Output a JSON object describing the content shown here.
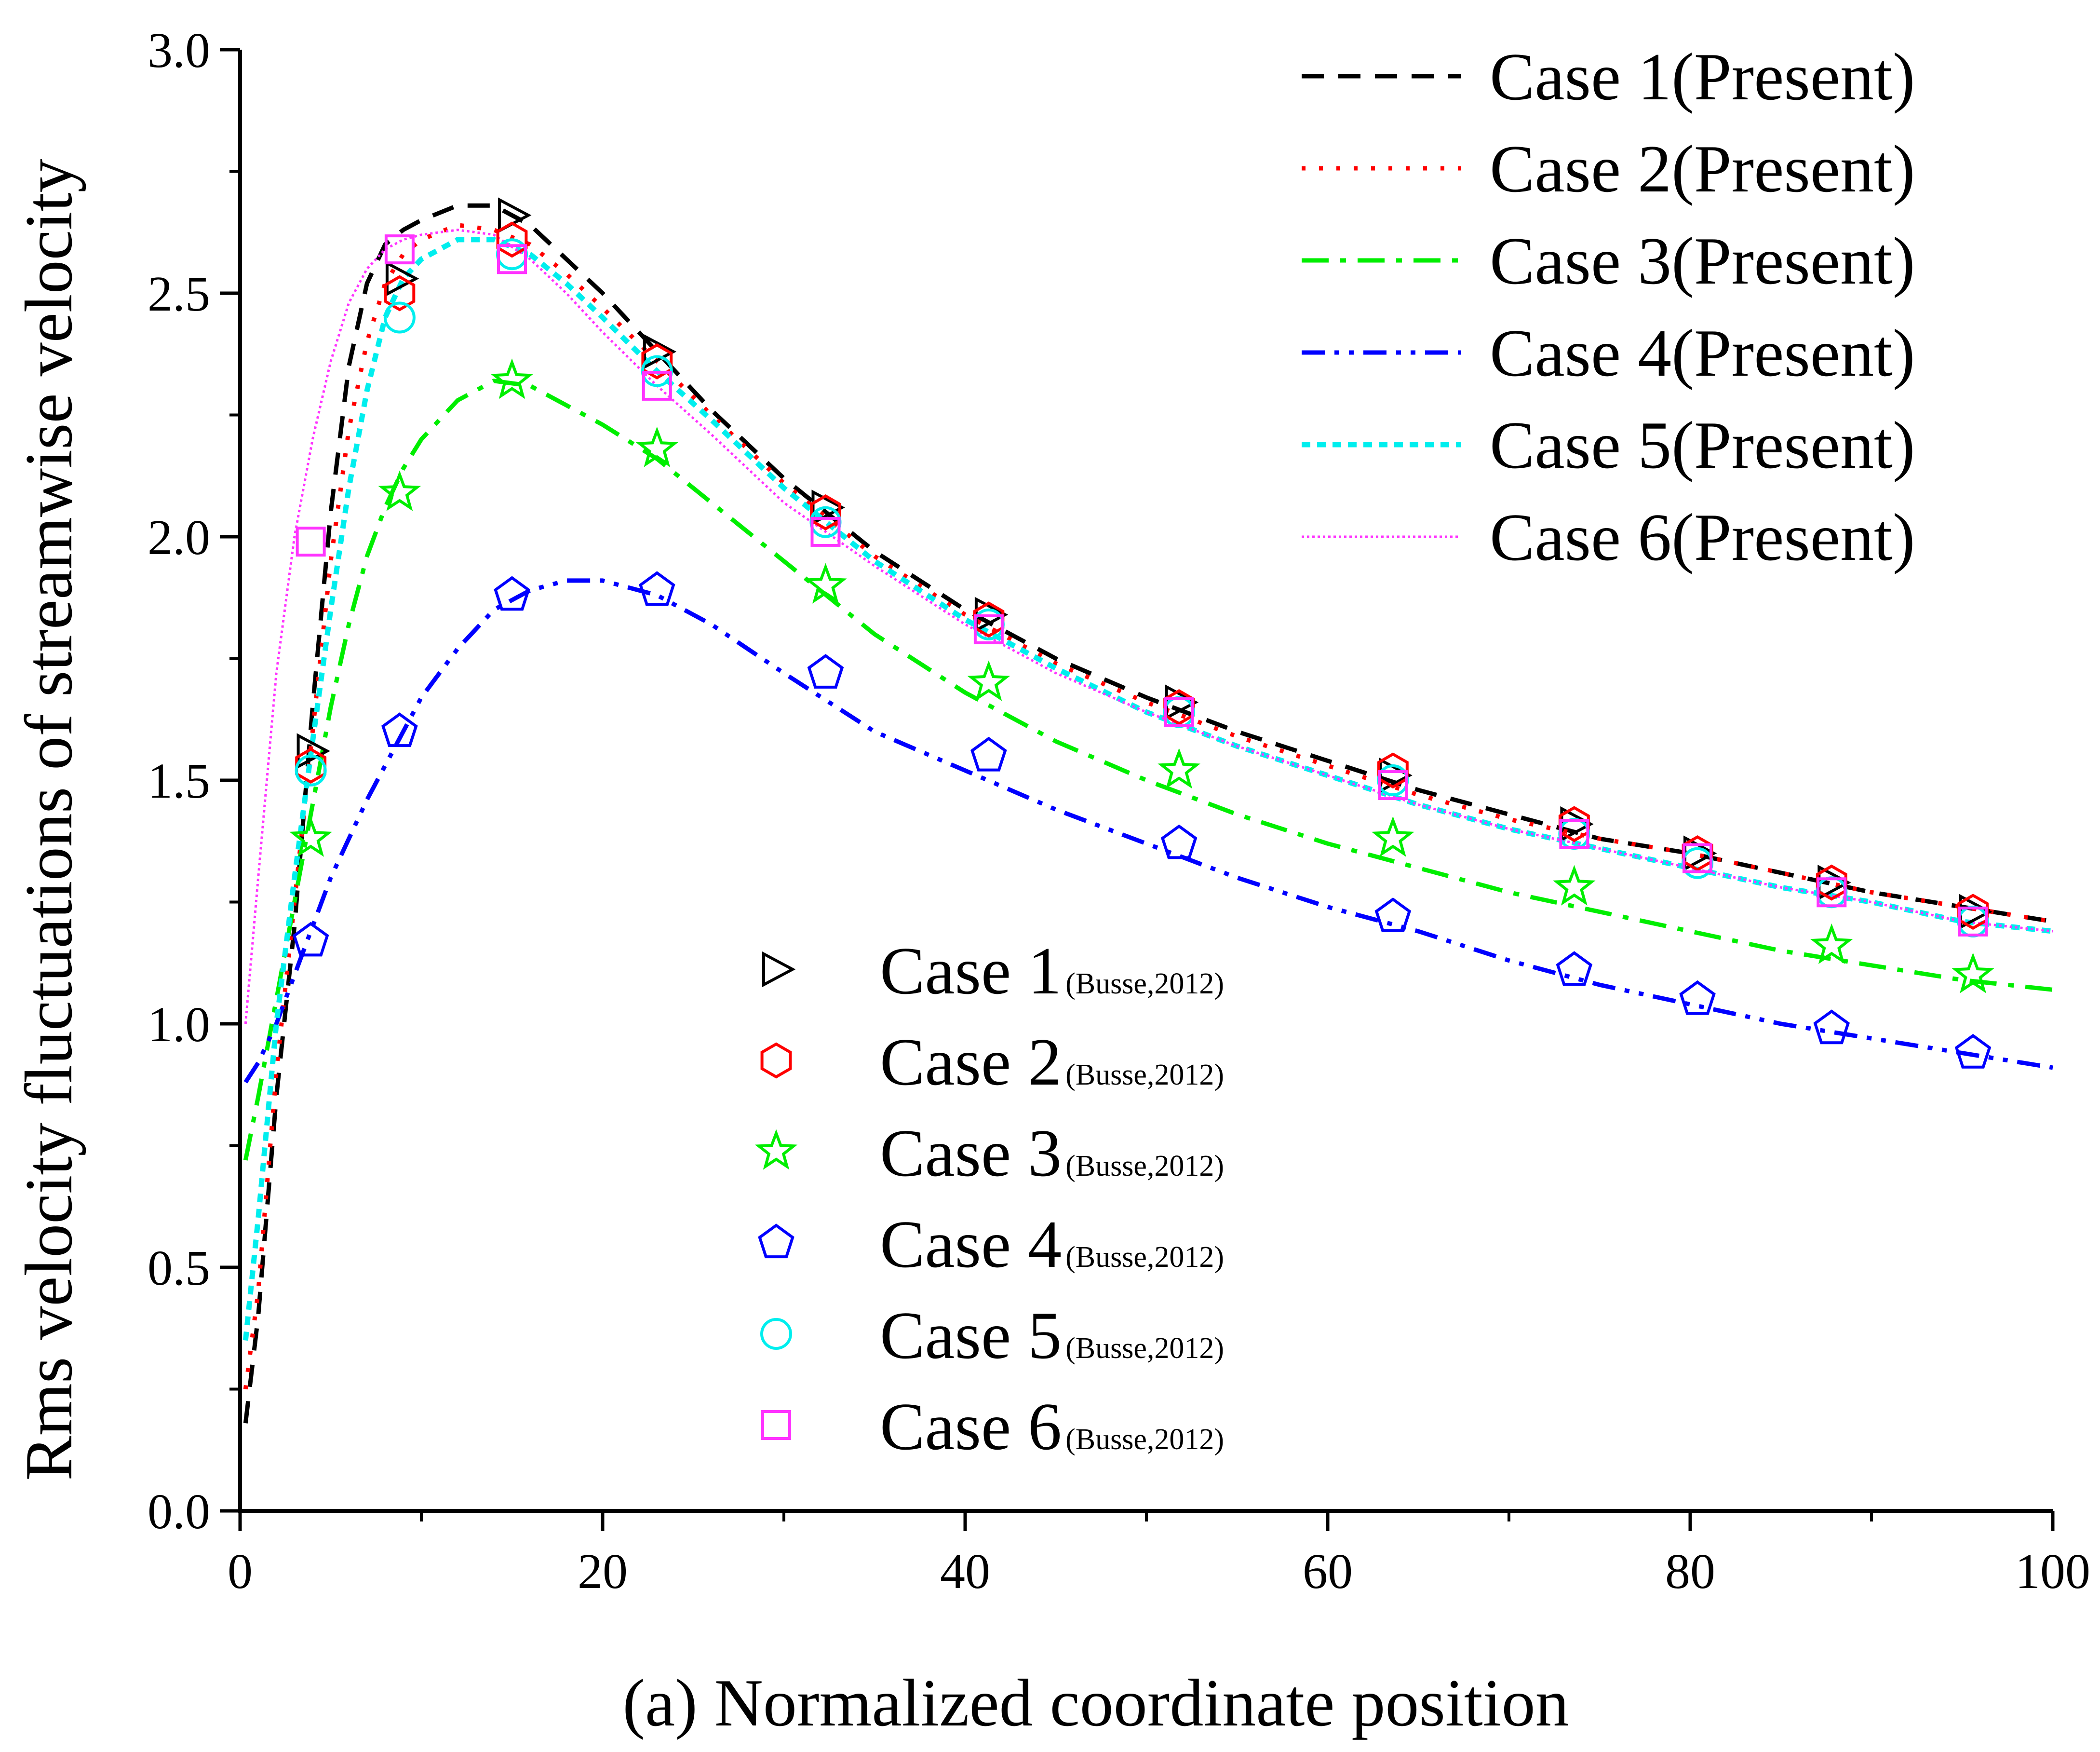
{
  "chart_data": {
    "type": "line",
    "title": "",
    "xlabel": "(a) Normalized coordinate position",
    "ylabel": "Rms velocity fluctuations of streamwise velocity",
    "xlim": [
      0,
      100
    ],
    "ylim": [
      0,
      3.0
    ],
    "xticks": [
      "0",
      "20",
      "40",
      "60",
      "80",
      "100"
    ],
    "yticks": [
      "0.0",
      "0.5",
      "1.0",
      "1.5",
      "2.0",
      "2.5",
      "3.0"
    ],
    "grid": false,
    "legend_lines_position": "top-right",
    "legend_markers_position": "center",
    "series_lines": [
      {
        "name": "Case 1(Present)",
        "color": "#000000",
        "style": "dash",
        "x": [
          0.3,
          1,
          2,
          3,
          4,
          5,
          6,
          7,
          8,
          9,
          10,
          12,
          14,
          16,
          18,
          20,
          23,
          26,
          30,
          35,
          40,
          45,
          50,
          55,
          60,
          65,
          70,
          75,
          80,
          85,
          90,
          95,
          100
        ],
        "y": [
          0.18,
          0.4,
          0.85,
          1.2,
          1.65,
          2.05,
          2.35,
          2.52,
          2.6,
          2.63,
          2.65,
          2.68,
          2.68,
          2.64,
          2.57,
          2.5,
          2.38,
          2.26,
          2.12,
          1.97,
          1.85,
          1.75,
          1.67,
          1.6,
          1.54,
          1.48,
          1.43,
          1.38,
          1.35,
          1.31,
          1.27,
          1.24,
          1.21
        ]
      },
      {
        "name": "Case 2(Present)",
        "color": "#ff0000",
        "style": "dot",
        "x": [
          0.3,
          1,
          2,
          3,
          4,
          5,
          6,
          7,
          8,
          9,
          10,
          12,
          14,
          16,
          18,
          20,
          23,
          26,
          30,
          35,
          40,
          45,
          50,
          55,
          60,
          65,
          70,
          75,
          80,
          85,
          90,
          95,
          100
        ],
        "y": [
          0.25,
          0.45,
          0.9,
          1.25,
          1.6,
          1.95,
          2.22,
          2.4,
          2.52,
          2.58,
          2.61,
          2.64,
          2.63,
          2.6,
          2.54,
          2.47,
          2.36,
          2.25,
          2.11,
          1.96,
          1.84,
          1.74,
          1.66,
          1.59,
          1.53,
          1.47,
          1.42,
          1.38,
          1.35,
          1.31,
          1.27,
          1.24,
          1.21
        ]
      },
      {
        "name": "Case 3(Present)",
        "color": "#00ee00",
        "style": "dashdot",
        "x": [
          0.3,
          1,
          2,
          3,
          4,
          5,
          6,
          7,
          8,
          9,
          10,
          12,
          14,
          16,
          18,
          20,
          23,
          26,
          30,
          35,
          40,
          45,
          50,
          55,
          60,
          65,
          70,
          75,
          80,
          85,
          90,
          95,
          100
        ],
        "y": [
          0.72,
          0.85,
          1.05,
          1.25,
          1.45,
          1.65,
          1.82,
          1.96,
          2.06,
          2.14,
          2.2,
          2.28,
          2.32,
          2.31,
          2.27,
          2.23,
          2.16,
          2.07,
          1.95,
          1.8,
          1.68,
          1.58,
          1.5,
          1.43,
          1.37,
          1.32,
          1.27,
          1.23,
          1.19,
          1.15,
          1.12,
          1.09,
          1.07
        ]
      },
      {
        "name": "Case 4(Present)",
        "color": "#0000ff",
        "style": "dashdotdot",
        "x": [
          0.3,
          1,
          2,
          3,
          4,
          5,
          6,
          7,
          8,
          9,
          10,
          12,
          14,
          16,
          18,
          20,
          23,
          26,
          30,
          35,
          40,
          45,
          50,
          55,
          60,
          65,
          70,
          75,
          80,
          85,
          90,
          95,
          100
        ],
        "y": [
          0.88,
          0.92,
          1.0,
          1.1,
          1.2,
          1.3,
          1.38,
          1.46,
          1.53,
          1.6,
          1.67,
          1.77,
          1.85,
          1.89,
          1.91,
          1.91,
          1.88,
          1.82,
          1.72,
          1.6,
          1.52,
          1.44,
          1.37,
          1.3,
          1.24,
          1.19,
          1.13,
          1.08,
          1.04,
          1.0,
          0.97,
          0.94,
          0.91
        ]
      },
      {
        "name": "Case 5(Present)",
        "color": "#00eeee",
        "style": "shortdot",
        "x": [
          0.3,
          1,
          2,
          3,
          4,
          5,
          6,
          7,
          8,
          9,
          10,
          12,
          14,
          16,
          18,
          20,
          23,
          26,
          30,
          35,
          40,
          45,
          50,
          55,
          60,
          65,
          70,
          75,
          80,
          85,
          90,
          95,
          100
        ],
        "y": [
          0.35,
          0.6,
          1.0,
          1.3,
          1.58,
          1.85,
          2.1,
          2.3,
          2.45,
          2.53,
          2.57,
          2.61,
          2.61,
          2.58,
          2.52,
          2.45,
          2.34,
          2.24,
          2.1,
          1.95,
          1.83,
          1.73,
          1.64,
          1.57,
          1.51,
          1.45,
          1.4,
          1.36,
          1.32,
          1.28,
          1.25,
          1.21,
          1.19
        ]
      },
      {
        "name": "Case 6(Present)",
        "color": "#ff33ff",
        "style": "finedot",
        "x": [
          0.3,
          1,
          2,
          3,
          4,
          5,
          6,
          7,
          8,
          9,
          10,
          12,
          14,
          16,
          18,
          20,
          23,
          26,
          30,
          35,
          40,
          45,
          50,
          55,
          60,
          65,
          70,
          75,
          80,
          85,
          90,
          95,
          100
        ],
        "y": [
          1.0,
          1.3,
          1.72,
          2.0,
          2.2,
          2.36,
          2.48,
          2.55,
          2.59,
          2.61,
          2.62,
          2.63,
          2.62,
          2.57,
          2.5,
          2.42,
          2.31,
          2.21,
          2.07,
          1.94,
          1.82,
          1.72,
          1.64,
          1.57,
          1.51,
          1.45,
          1.4,
          1.36,
          1.32,
          1.28,
          1.25,
          1.21,
          1.19
        ]
      }
    ],
    "series_markers": [
      {
        "name": "Case 1",
        "source": "(Busse,2012)",
        "marker": "triangle-right",
        "color": "#000000",
        "x": [
          3.9,
          8.8,
          15.0,
          23.0,
          32.3,
          41.3,
          51.8,
          63.6,
          73.6,
          80.4,
          87.8,
          95.6
        ],
        "y": [
          1.56,
          2.53,
          2.66,
          2.38,
          2.06,
          1.84,
          1.66,
          1.51,
          1.41,
          1.35,
          1.29,
          1.23
        ]
      },
      {
        "name": "Case 2",
        "source": "(Busse,2012)",
        "marker": "hexagon",
        "color": "#ff0000",
        "x": [
          3.9,
          8.8,
          15.0,
          23.0,
          32.3,
          41.3,
          51.8,
          63.6,
          73.6,
          80.4,
          87.8,
          95.6
        ],
        "y": [
          1.53,
          2.5,
          2.61,
          2.36,
          2.05,
          1.83,
          1.65,
          1.52,
          1.41,
          1.35,
          1.29,
          1.23
        ]
      },
      {
        "name": "Case 3",
        "source": "(Busse,2012)",
        "marker": "star",
        "color": "#00ee00",
        "x": [
          3.9,
          8.8,
          15.0,
          23.0,
          32.3,
          41.3,
          51.8,
          63.6,
          73.6,
          80.4,
          87.8,
          95.6
        ],
        "y": [
          1.38,
          2.09,
          2.32,
          2.18,
          1.9,
          1.7,
          1.52,
          1.38,
          1.28,
          null,
          1.16,
          1.1
        ]
      },
      {
        "name": "Case 4",
        "source": "(Busse,2012)",
        "marker": "pentagon",
        "color": "#0000ff",
        "x": [
          3.9,
          8.8,
          15.0,
          23.0,
          32.3,
          41.3,
          51.8,
          63.6,
          73.6,
          80.4,
          87.8,
          95.6
        ],
        "y": [
          1.17,
          1.6,
          1.88,
          1.89,
          1.72,
          1.55,
          1.37,
          1.22,
          1.11,
          1.05,
          0.99,
          0.94
        ]
      },
      {
        "name": "Case 5",
        "source": "(Busse,2012)",
        "marker": "circle",
        "color": "#00eeee",
        "x": [
          3.9,
          8.8,
          15.0,
          23.0,
          32.3,
          41.3,
          51.8,
          63.6,
          73.6,
          80.4,
          87.8,
          95.6
        ],
        "y": [
          1.52,
          2.45,
          2.58,
          2.34,
          2.03,
          1.82,
          1.64,
          1.5,
          1.39,
          1.33,
          1.27,
          1.21
        ]
      },
      {
        "name": "Case 6",
        "source": "(Busse,2012)",
        "marker": "square",
        "color": "#ff33ff",
        "x": [
          3.9,
          8.8,
          15.0,
          23.0,
          32.3,
          41.3,
          51.8,
          63.6,
          73.6,
          80.4,
          87.8,
          95.6
        ],
        "y": [
          1.99,
          2.59,
          2.57,
          2.31,
          2.01,
          1.81,
          1.64,
          1.49,
          1.39,
          1.34,
          1.27,
          1.21
        ]
      }
    ]
  }
}
